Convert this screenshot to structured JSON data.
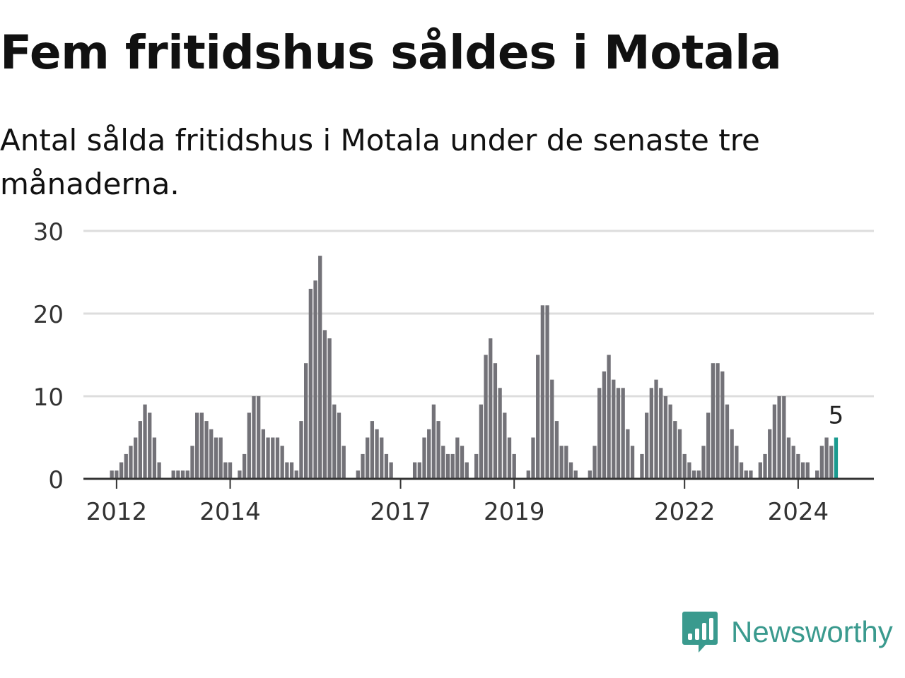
{
  "header": {
    "title": "Fem fritidshus såldes i Motala",
    "subtitle": "Antal sålda fritidshus i Motala under de senaste tre månaderna."
  },
  "brand": {
    "name": "Newsworthy",
    "icon": "bar-chart-speech-bubble-icon",
    "color": "#3a9a8e"
  },
  "colors": {
    "bar": "#737278",
    "highlight": "#1a9a8f",
    "grid": "#dddddd",
    "axis": "#333333"
  },
  "chart_data": {
    "type": "bar",
    "title": "Fem fritidshus såldes i Motala",
    "xlabel": "",
    "ylabel": "",
    "ylim": [
      0,
      30
    ],
    "yticks": [
      0,
      10,
      20,
      30
    ],
    "xticks": [
      "2012",
      "2014",
      "2017",
      "2019",
      "2022",
      "2024"
    ],
    "xlim_months": [
      "2011-06",
      "2025-05"
    ],
    "grid": true,
    "start_month": "2011-10",
    "values": [
      0,
      0,
      1,
      1,
      2,
      3,
      4,
      5,
      7,
      9,
      8,
      5,
      2,
      0,
      0,
      1,
      1,
      1,
      1,
      4,
      8,
      8,
      7,
      6,
      5,
      5,
      2,
      2,
      0,
      1,
      3,
      8,
      10,
      10,
      6,
      5,
      5,
      5,
      4,
      2,
      2,
      1,
      7,
      14,
      23,
      24,
      27,
      18,
      17,
      9,
      8,
      4,
      0,
      0,
      1,
      3,
      5,
      7,
      6,
      5,
      3,
      2,
      0,
      0,
      0,
      0,
      2,
      2,
      5,
      6,
      9,
      7,
      4,
      3,
      3,
      5,
      4,
      2,
      0,
      3,
      9,
      15,
      17,
      14,
      11,
      8,
      5,
      3,
      0,
      0,
      1,
      5,
      15,
      21,
      21,
      12,
      7,
      4,
      4,
      2,
      1,
      0,
      0,
      1,
      4,
      11,
      13,
      15,
      12,
      11,
      11,
      6,
      4,
      0,
      3,
      8,
      11,
      12,
      11,
      10,
      9,
      7,
      6,
      3,
      2,
      1,
      1,
      4,
      8,
      14,
      14,
      13,
      9,
      6,
      4,
      2,
      1,
      1,
      0,
      2,
      3,
      6,
      9,
      10,
      10,
      5,
      4,
      3,
      2,
      2,
      0,
      1,
      4,
      5,
      4,
      5
    ],
    "highlight": {
      "month": "2024-09",
      "value": 5,
      "label": "5"
    }
  }
}
